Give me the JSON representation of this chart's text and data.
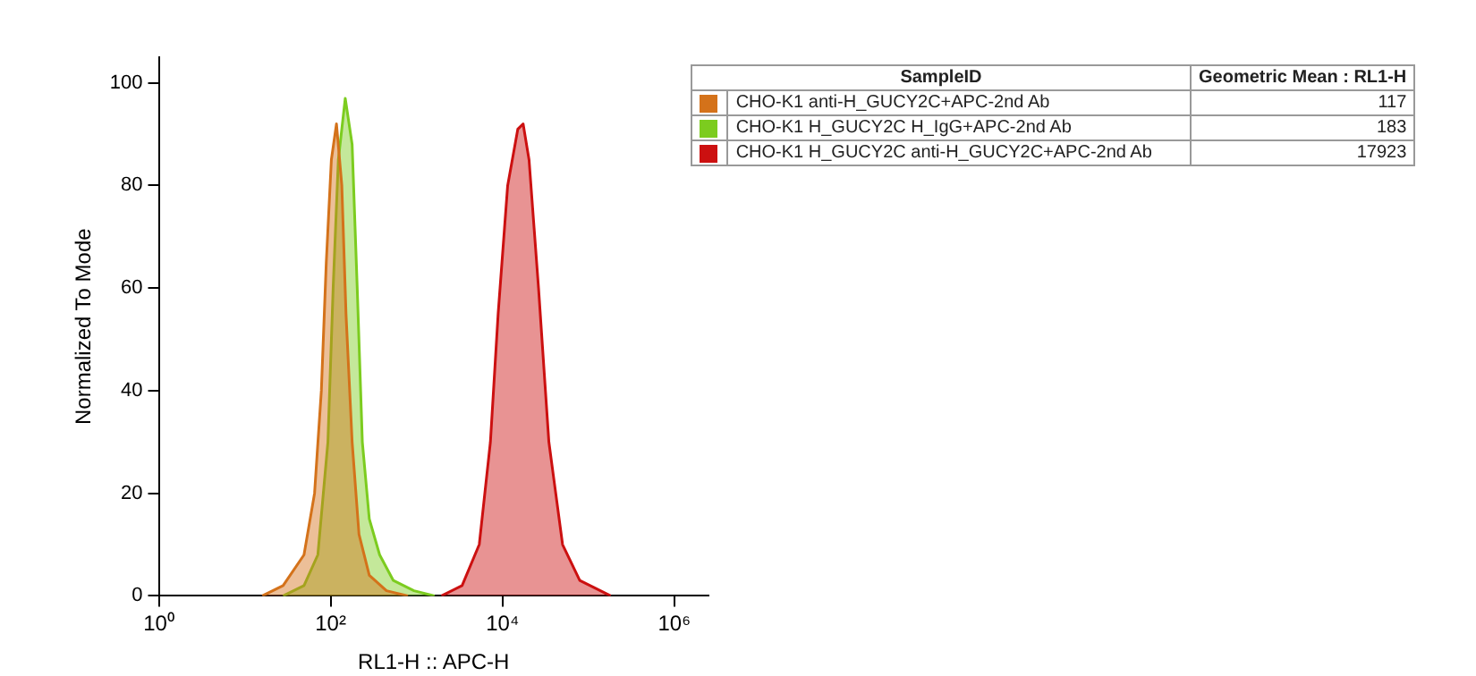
{
  "chart_data": {
    "type": "area",
    "xlabel": "RL1-H :: APC-H",
    "ylabel": "Normalized To Mode",
    "legend_title": "SampleID",
    "log": "x",
    "xlim": [
      1,
      2500000
    ],
    "xticks": [
      {
        "value": 1,
        "label": "10⁰"
      },
      {
        "value": 100,
        "label": "10²"
      },
      {
        "value": 10000,
        "label": "10⁴"
      },
      {
        "value": 1000000,
        "label": "10⁶"
      }
    ],
    "ylim": [
      0,
      105
    ],
    "yticks": [
      0,
      20,
      40,
      60,
      80,
      100
    ],
    "grid": false,
    "legend": "right",
    "annotations": [
      "Geometric Mean : RL1-H",
      "117",
      "183",
      "17923"
    ],
    "series": [
      {
        "name": "CHO-K1 anti-H_GUCY2C+APC-2nd Ab",
        "color": "#d4721a",
        "x": [
          16,
          28,
          49,
          65,
          78,
          89,
          102,
          117,
          135,
          151,
          178,
          214,
          282,
          447,
          794
        ],
        "values": [
          0,
          2,
          8,
          20,
          40,
          65,
          85,
          92,
          80,
          55,
          30,
          12,
          4,
          1,
          0
        ]
      },
      {
        "name": "CHO-K1 H_GUCY2C H_IgG+APC-2nd Ab",
        "color": "#7ccc1f",
        "x": [
          28,
          49,
          71,
          93,
          107,
          123,
          148,
          178,
          204,
          234,
          282,
          372,
          537,
          933,
          1622
        ],
        "values": [
          0,
          2,
          8,
          30,
          60,
          85,
          97,
          88,
          60,
          30,
          15,
          8,
          3,
          1,
          0
        ]
      },
      {
        "name": "CHO-K1 H_GUCY2C anti-H_GUCY2C+APC-2nd Ab",
        "color": "#cc1010",
        "x": [
          1950,
          3390,
          5370,
          7240,
          8910,
          11500,
          15100,
          17400,
          20400,
          26300,
          34700,
          50100,
          79400,
          182000
        ],
        "values": [
          0,
          2,
          10,
          30,
          55,
          80,
          91,
          92,
          85,
          60,
          30,
          10,
          3,
          0
        ]
      }
    ]
  }
}
